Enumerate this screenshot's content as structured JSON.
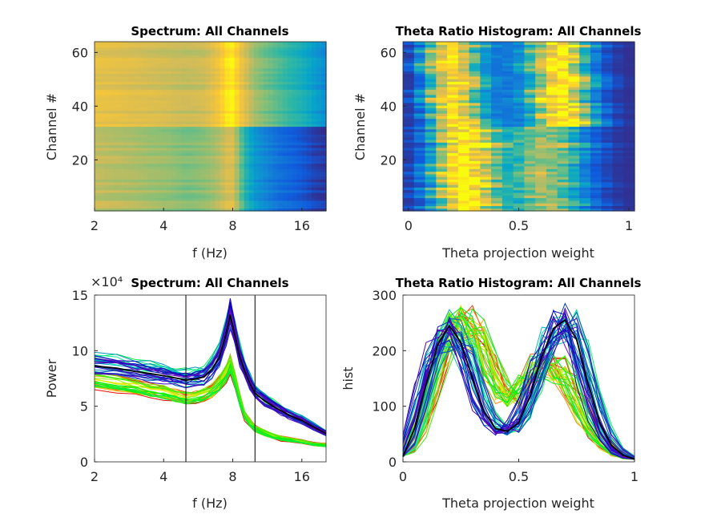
{
  "colormap": [
    "#352a87",
    "#0f5cdd",
    "#1481d6",
    "#06a4ca",
    "#2eb7a4",
    "#87bf77",
    "#d1bb59",
    "#fec832",
    "#f9fb0e"
  ],
  "chart_data": [
    {
      "type": "heatmap",
      "title": "Spectrum: All Channels",
      "xlabel": "f (Hz)",
      "ylabel": "Channel #",
      "x_scale": "log",
      "xlim": [
        2,
        20.4
      ],
      "ylim": [
        1,
        64
      ],
      "xticks": [
        "2",
        "4",
        "8",
        "16"
      ],
      "xtick_values": [
        2,
        4,
        8,
        16
      ],
      "yticks": [
        "20",
        "40",
        "60"
      ],
      "ytick_values": [
        20,
        40,
        60
      ],
      "source": "spectrum"
    },
    {
      "type": "heatmap",
      "title": "Theta Ratio Histogram: All Channels",
      "xlabel": "Theta projection weight",
      "ylabel": "Channel #",
      "xlim": [
        -0.025,
        1.025
      ],
      "ylim": [
        1,
        64
      ],
      "xticks": [
        "0",
        "0.5",
        "1"
      ],
      "xtick_values": [
        0,
        0.5,
        1
      ],
      "yticks": [
        "20",
        "40",
        "60"
      ],
      "ytick_values": [
        20,
        40,
        60
      ],
      "source": "histogram"
    },
    {
      "type": "line",
      "title": "Spectrum: All Channels",
      "xlabel": "f (Hz)",
      "ylabel": "Power",
      "y_exponent": "×10⁴",
      "x_scale": "log",
      "xlim": [
        2,
        20.4
      ],
      "ylim": [
        0,
        15
      ],
      "xticks": [
        "2",
        "4",
        "8",
        "16"
      ],
      "xtick_values": [
        2,
        4,
        8,
        16
      ],
      "yticks": [
        "0",
        "5",
        "10",
        "15"
      ],
      "ytick_values": [
        0,
        5,
        10,
        15
      ],
      "vlines": [
        5,
        10
      ],
      "f": [
        2,
        2.5,
        3,
        3.5,
        4,
        4.5,
        5,
        5.5,
        6,
        6.5,
        7,
        7.5,
        7.8,
        8.2,
        8.6,
        9,
        9.5,
        10,
        11,
        12,
        13,
        14,
        16,
        18,
        20.4
      ],
      "series": [
        {
          "channels": [
            1,
            32
          ],
          "values": [
            7.3,
            7.0,
            6.7,
            6.4,
            6.2,
            6.0,
            5.7,
            5.8,
            6.0,
            6.4,
            7.0,
            8.0,
            8.8,
            7.2,
            5.5,
            4.2,
            3.5,
            3.0,
            2.6,
            2.3,
            2.1,
            2.0,
            1.8,
            1.6,
            1.5
          ]
        },
        {
          "channels": [
            33,
            64
          ],
          "values": [
            8.8,
            8.6,
            8.3,
            8.1,
            7.9,
            7.7,
            7.5,
            7.6,
            7.8,
            8.5,
            9.6,
            11.8,
            13.5,
            11.5,
            9.6,
            8.4,
            7.2,
            6.3,
            5.6,
            5.1,
            4.7,
            4.3,
            3.8,
            3.2,
            2.6
          ]
        }
      ]
    },
    {
      "type": "line",
      "title": "Theta Ratio Histogram: All Channels",
      "xlabel": "Theta projection weight",
      "ylabel": "hist",
      "xlim": [
        0,
        1
      ],
      "ylim": [
        0,
        300
      ],
      "xticks": [
        "0",
        "0.5",
        "1"
      ],
      "xtick_values": [
        0,
        0.5,
        1
      ],
      "yticks": [
        "0",
        "100",
        "200",
        "300"
      ],
      "ytick_values": [
        0,
        100,
        200,
        300
      ],
      "x": [
        0,
        0.05,
        0.1,
        0.15,
        0.2,
        0.25,
        0.3,
        0.35,
        0.4,
        0.45,
        0.5,
        0.55,
        0.6,
        0.65,
        0.7,
        0.75,
        0.8,
        0.85,
        0.9,
        0.95,
        1
      ],
      "series": [
        {
          "channels": [
            1,
            32
          ],
          "values": [
            10,
            40,
            90,
            170,
            230,
            250,
            245,
            210,
            150,
            110,
            120,
            160,
            175,
            170,
            160,
            120,
            70,
            40,
            20,
            10,
            5
          ]
        },
        {
          "channels": [
            33,
            64
          ],
          "values": [
            10,
            60,
            140,
            210,
            245,
            215,
            150,
            90,
            60,
            55,
            70,
            120,
            190,
            240,
            255,
            220,
            140,
            70,
            30,
            12,
            5
          ]
        }
      ]
    }
  ]
}
